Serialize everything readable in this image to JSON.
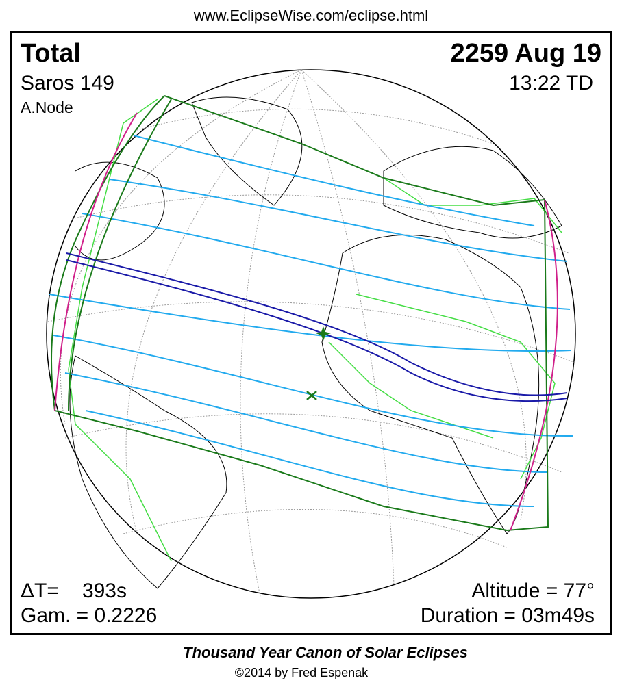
{
  "header": {
    "url": "www.EclipseWise.com/eclipse.html"
  },
  "eclipse": {
    "type": "Total",
    "date": "2259 Aug 19",
    "saros": "Saros 149",
    "time": "13:22 TD",
    "node": "A.Node",
    "delta_t_label": "ΔT=",
    "delta_t": "393s",
    "gamma": "Gam. = 0.2226",
    "altitude": "Altitude = 77°",
    "duration": "Duration = 03m49s"
  },
  "footer": {
    "title": "Thousand Year Canon of Solar Eclipses",
    "credit": "©2014 by Fred Espenak"
  }
}
